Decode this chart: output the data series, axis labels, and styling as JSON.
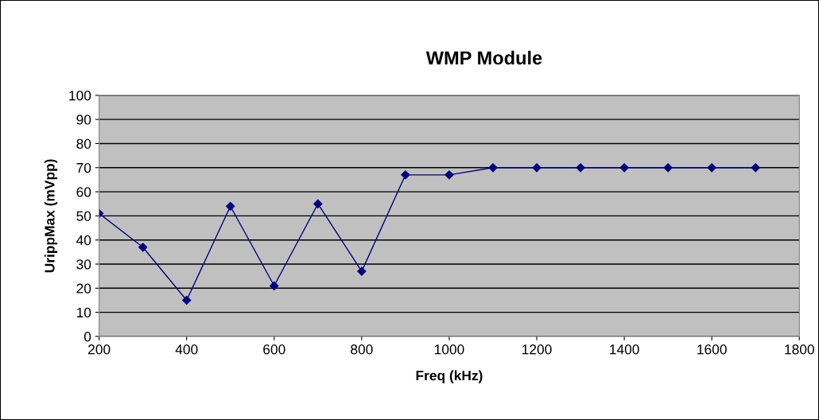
{
  "chart_data": {
    "type": "line",
    "title": "WMP Module",
    "xlabel": "Freq (kHz)",
    "ylabel": "UrippMax (mVpp)",
    "x": [
      200,
      300,
      400,
      500,
      600,
      700,
      800,
      900,
      1000,
      1100,
      1200,
      1300,
      1400,
      1500,
      1600,
      1700
    ],
    "series": [
      {
        "color": "#000080",
        "values": [
          51,
          37,
          15,
          54,
          21,
          55,
          27,
          67,
          67,
          70,
          70,
          70,
          70,
          70,
          70,
          70
        ]
      }
    ],
    "xlim": [
      200,
      1800
    ],
    "xticks": [
      200,
      400,
      600,
      800,
      1000,
      1200,
      1400,
      1600,
      1800
    ],
    "ylim": [
      0,
      100
    ],
    "yticks": [
      0,
      10,
      20,
      30,
      40,
      50,
      60,
      70,
      80,
      90,
      100
    ],
    "grid": "y",
    "legend": false,
    "marker": "diamond",
    "line_style": "solid"
  }
}
